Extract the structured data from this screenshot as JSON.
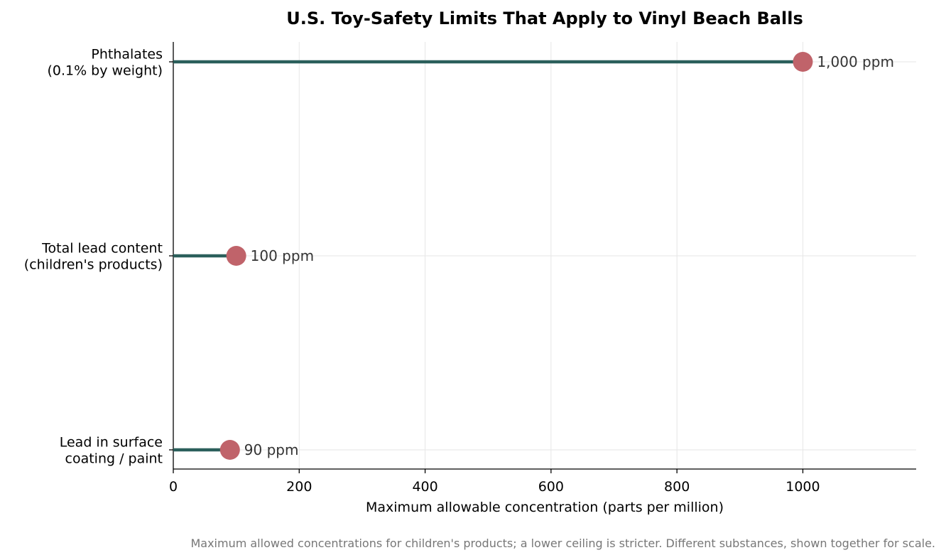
{
  "chart_data": {
    "type": "lollipop",
    "orientation": "horizontal",
    "title": "U.S. Toy-Safety Limits That Apply to Vinyl Beach Balls",
    "xlabel": "Maximum allowable concentration (parts per million)",
    "ylabel": "",
    "xlim": [
      0,
      1180
    ],
    "xticks": [
      0,
      200,
      400,
      600,
      800,
      1000
    ],
    "grid": true,
    "categories": [
      {
        "lines": [
          "Phthalates",
          "(0.1% by weight)"
        ],
        "value": 1000,
        "label": "1,000 ppm"
      },
      {
        "lines": [
          "Total lead content",
          "(children's products)"
        ],
        "value": 100,
        "label": "100 ppm"
      },
      {
        "lines": [
          "Lead in surface",
          "coating / paint"
        ],
        "value": 90,
        "label": "90 ppm"
      }
    ],
    "colors": {
      "stem": "#2b5f5b",
      "marker": "#c0636a"
    },
    "footnote": "Maximum allowed concentrations for children's products; a lower ceiling is stricter. Different substances, shown together for scale."
  }
}
